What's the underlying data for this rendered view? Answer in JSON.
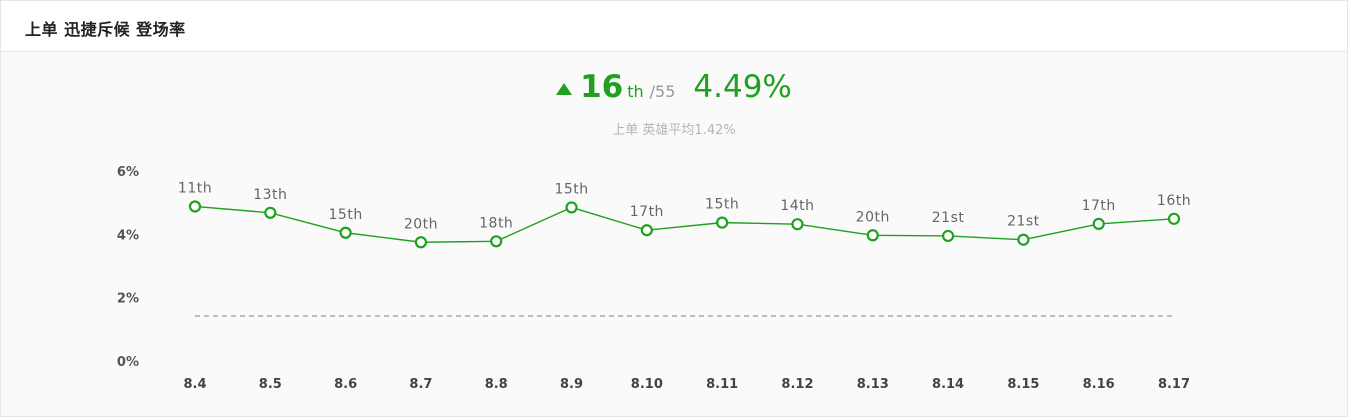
{
  "header": {
    "title": "上单 迅捷斥候 登场率"
  },
  "summary": {
    "rank": "16",
    "rank_suffix": "th",
    "rank_total": "/55",
    "rate": "4.49%",
    "trend": "up",
    "subtitle": "上单 英雄平均1.42%"
  },
  "colors": {
    "accent": "#1fa01f",
    "average_line": "#999999"
  },
  "chart_data": {
    "type": "line",
    "title": "",
    "xlabel": "",
    "ylabel": "",
    "categories": [
      "8.4",
      "8.5",
      "8.6",
      "8.7",
      "8.8",
      "8.9",
      "8.10",
      "8.11",
      "8.12",
      "8.13",
      "8.14",
      "8.15",
      "8.16",
      "8.17"
    ],
    "series": [
      {
        "values": [
          4.88,
          4.68,
          4.05,
          3.75,
          3.78,
          4.85,
          4.13,
          4.37,
          4.32,
          3.97,
          3.95,
          3.83,
          4.33,
          4.49
        ],
        "point_labels": [
          "11th",
          "13th",
          "15th",
          "20th",
          "18th",
          "15th",
          "17th",
          "15th",
          "14th",
          "20th",
          "21st",
          "21st",
          "17th",
          "16th"
        ]
      }
    ],
    "average": 1.42,
    "y_ticks": [
      "6%",
      "4%",
      "2%",
      "0%"
    ],
    "ylim": [
      0,
      6
    ],
    "grid": false,
    "legend": "none"
  }
}
